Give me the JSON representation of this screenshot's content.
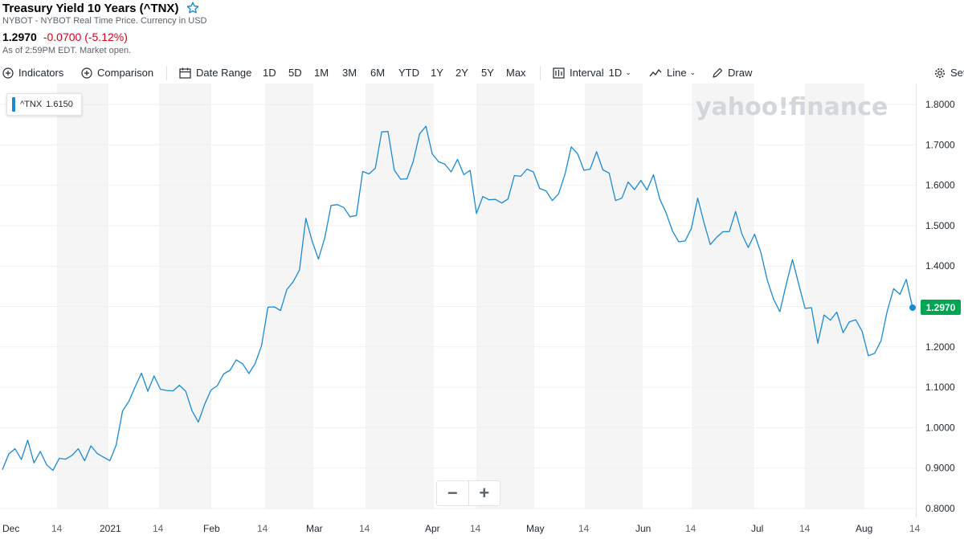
{
  "header": {
    "title": "Treasury Yield 10 Years (^TNX)",
    "subtitle": "NYBOT - NYBOT Real Time Price. Currency in USD",
    "price": "1.2970",
    "change": "-0.0700 (-5.12%)",
    "as_of": "As of 2:59PM EDT. Market open."
  },
  "toolbar": {
    "indicators": "Indicators",
    "comparison": "Comparison",
    "date_range": "Date Range",
    "ranges": [
      "1D",
      "5D",
      "1M",
      "3M",
      "6M",
      "YTD",
      "1Y",
      "2Y",
      "5Y",
      "Max"
    ],
    "interval_label": "Interval",
    "interval_value": "1D",
    "chart_type": "Line",
    "draw": "Draw",
    "settings": "Set"
  },
  "legend": {
    "symbol": "^TNX",
    "value": "1.6150"
  },
  "last_price_label": "1.2970",
  "watermark": "yahoo!finance",
  "zoom": {
    "minus": "−",
    "plus": "+"
  },
  "colors": {
    "line": "#1a8ad5",
    "last_label_bg": "#00a651",
    "change_negative": "#d6001c",
    "band": "#f5f5f5"
  },
  "chart_data": {
    "type": "line",
    "series": [
      {
        "values": [
          0.896,
          0.935,
          0.948,
          0.921,
          0.969,
          0.913,
          0.941,
          0.908,
          0.894,
          0.924,
          0.922,
          0.931,
          0.948,
          0.918,
          0.955,
          0.936,
          0.927,
          0.918,
          0.957,
          1.041,
          1.065,
          1.101,
          1.135,
          1.09,
          1.128,
          1.095,
          1.092,
          1.091,
          1.105,
          1.09,
          1.042,
          1.014,
          1.058,
          1.093,
          1.104,
          1.133,
          1.142,
          1.168,
          1.158,
          1.134,
          1.159,
          1.203,
          1.298,
          1.299,
          1.29,
          1.342,
          1.361,
          1.39,
          1.518,
          1.462,
          1.417,
          1.47,
          1.55,
          1.552,
          1.545,
          1.522,
          1.525,
          1.634,
          1.628,
          1.642,
          1.732,
          1.733,
          1.638,
          1.615,
          1.616,
          1.659,
          1.727,
          1.746,
          1.678,
          1.658,
          1.652,
          1.633,
          1.664,
          1.626,
          1.637,
          1.53,
          1.572,
          1.564,
          1.565,
          1.556,
          1.566,
          1.624,
          1.622,
          1.64,
          1.633,
          1.592,
          1.586,
          1.562,
          1.579,
          1.627,
          1.695,
          1.678,
          1.637,
          1.64,
          1.683,
          1.638,
          1.63,
          1.562,
          1.568,
          1.608,
          1.589,
          1.612,
          1.588,
          1.626,
          1.566,
          1.532,
          1.487,
          1.46,
          1.462,
          1.493,
          1.568,
          1.507,
          1.453,
          1.471,
          1.485,
          1.485,
          1.535,
          1.479,
          1.446,
          1.479,
          1.433,
          1.366,
          1.318,
          1.287,
          1.354,
          1.416,
          1.354,
          1.295,
          1.297,
          1.209,
          1.279,
          1.266,
          1.286,
          1.235,
          1.262,
          1.267,
          1.239,
          1.178,
          1.184,
          1.215,
          1.289,
          1.344,
          1.33,
          1.367,
          1.297
        ]
      }
    ],
    "yticks": [
      "1.8000",
      "1.7000",
      "1.6000",
      "1.5000",
      "1.4000",
      "1.3000",
      "1.2000",
      "1.1000",
      "1.0000",
      "0.9000",
      "0.8000"
    ],
    "ylim": [
      0.8,
      1.8
    ],
    "xticks": [
      {
        "label": "Dec",
        "major": true
      },
      {
        "label": "14",
        "major": false
      },
      {
        "label": "2021",
        "major": true
      },
      {
        "label": "14",
        "major": false
      },
      {
        "label": "Feb",
        "major": true
      },
      {
        "label": "14",
        "major": false
      },
      {
        "label": "Mar",
        "major": true
      },
      {
        "label": "14",
        "major": false
      },
      {
        "label": "Apr",
        "major": true
      },
      {
        "label": "14",
        "major": false
      },
      {
        "label": "May",
        "major": true
      },
      {
        "label": "14",
        "major": false
      },
      {
        "label": "Jun",
        "major": true
      },
      {
        "label": "14",
        "major": false
      },
      {
        "label": "Jul",
        "major": true
      },
      {
        "label": "14",
        "major": false
      },
      {
        "label": "Aug",
        "major": true
      },
      {
        "label": "14",
        "major": false
      }
    ],
    "grid": true,
    "legend_position": "top-left"
  }
}
